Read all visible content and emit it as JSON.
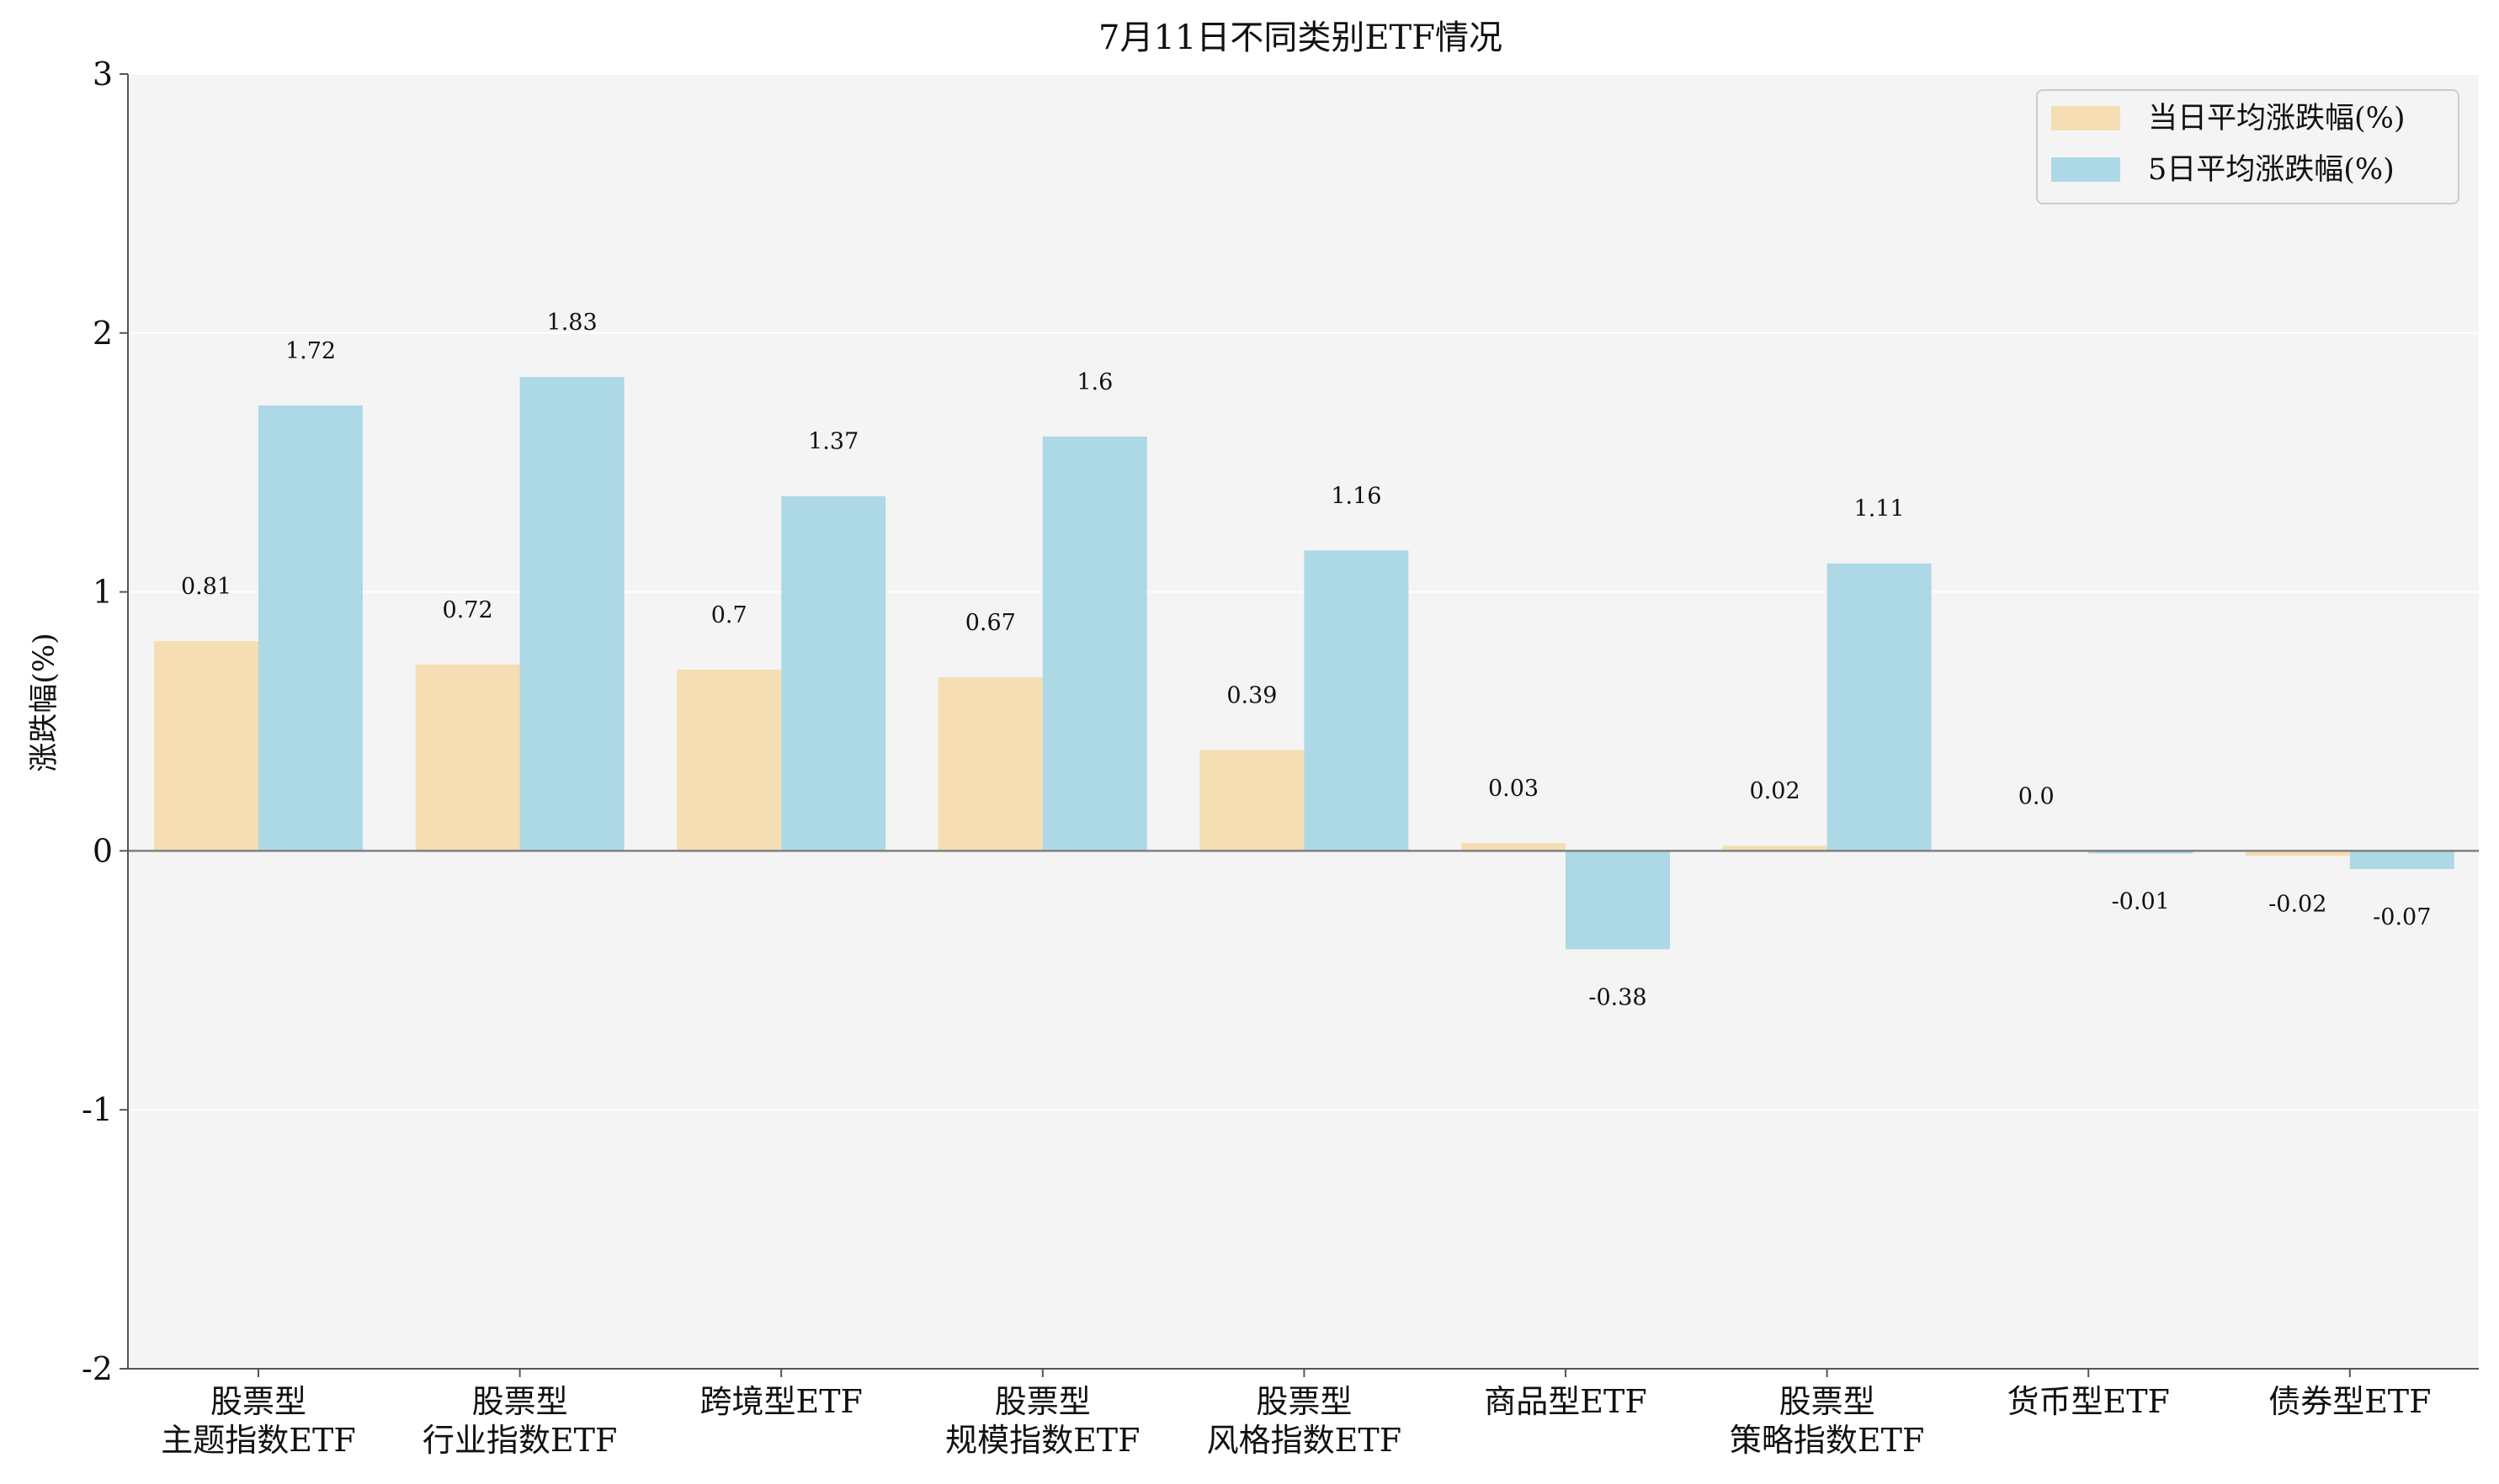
{
  "chart_data": {
    "type": "bar",
    "title": "7月11日不同类别ETF情况",
    "ylabel": "涨跌幅(%)",
    "xlabel": "",
    "ylim": [
      -2,
      3
    ],
    "yticks": [
      -2,
      -1,
      0,
      1,
      2,
      3
    ],
    "categories": [
      [
        "股票型",
        "主题指数ETF"
      ],
      [
        "股票型",
        "行业指数ETF"
      ],
      [
        "跨境型ETF"
      ],
      [
        "股票型",
        "规模指数ETF"
      ],
      [
        "股票型",
        "风格指数ETF"
      ],
      [
        "商品型ETF"
      ],
      [
        "股票型",
        "策略指数ETF"
      ],
      [
        "货币型ETF"
      ],
      [
        "债券型ETF"
      ]
    ],
    "series": [
      {
        "name": "当日平均涨跌幅(%)",
        "color": "#f5deb3",
        "values": [
          0.81,
          0.72,
          0.7,
          0.67,
          0.39,
          0.03,
          0.02,
          0.0,
          -0.02
        ],
        "labels": [
          "0.81",
          "0.72",
          "0.7",
          "0.67",
          "0.39",
          "0.03",
          "0.02",
          "0.0",
          "-0.02"
        ]
      },
      {
        "name": "5日平均涨跌幅(%)",
        "color": "#add8e6",
        "values": [
          1.72,
          1.83,
          1.37,
          1.6,
          1.16,
          -0.38,
          1.11,
          -0.01,
          -0.07
        ],
        "labels": [
          "1.72",
          "1.83",
          "1.37",
          "1.6",
          "1.16",
          "-0.38",
          "1.11",
          "-0.01",
          "-0.07"
        ]
      }
    ],
    "legend": {
      "position": "top-right"
    },
    "grid": true,
    "background": "#f4f4f4"
  }
}
